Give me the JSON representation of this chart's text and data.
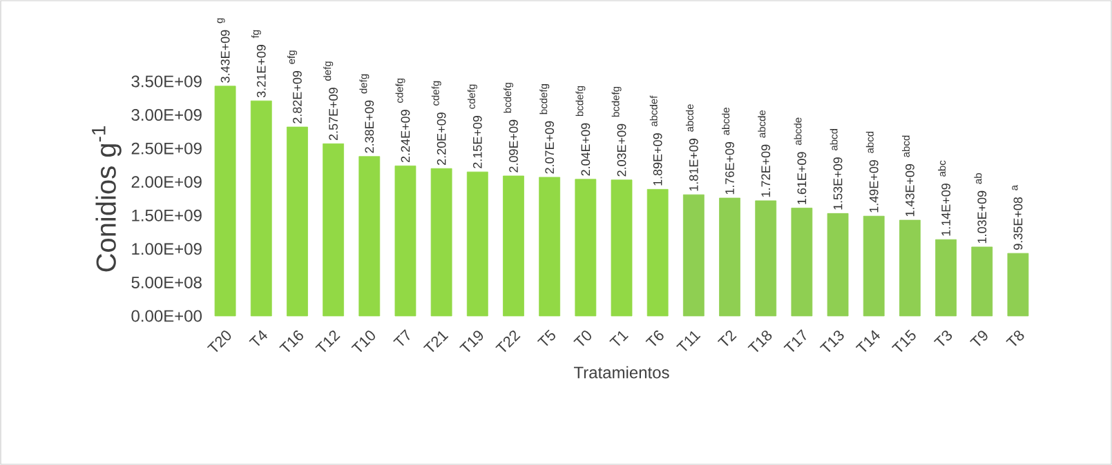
{
  "chart_data": {
    "type": "bar",
    "ylabel": "Conidios g$^{-1}$",
    "xlabel": "Tratamientos",
    "categories": [
      "T20",
      "T4",
      "T16",
      "T12",
      "T10",
      "T7",
      "T21",
      "T19",
      "T22",
      "T5",
      "T0",
      "T1",
      "T6",
      "T11",
      "T2",
      "T18",
      "T17",
      "T13",
      "T14",
      "T15",
      "T3",
      "T9",
      "T8"
    ],
    "values": [
      3430000000,
      3210000000,
      2820000000,
      2570000000,
      2380000000,
      2240000000,
      2200000000,
      2150000000,
      2090000000,
      2070000000,
      2040000000,
      2030000000,
      1890000000,
      1810000000,
      1760000000,
      1720000000,
      1610000000,
      1530000000,
      1490000000,
      1430000000,
      1140000000,
      1030000000,
      935000000
    ],
    "value_labels": [
      "3.43E+09",
      "3.21E+09",
      "2.82E+09",
      "2.57E+09",
      "2.38E+09",
      "2.24E+09",
      "2.20E+09",
      "2.15E+09",
      "2.09E+09",
      "2.07E+09",
      "2.04E+09",
      "2.03E+09",
      "1.89E+09",
      "1.81E+09",
      "1.76E+09",
      "1.72E+09",
      "1.61E+09",
      "1.53E+09",
      "1.49E+09",
      "1.43E+09",
      "1.14E+09",
      "1.03E+09",
      "9.35E+08"
    ],
    "annotations": [
      "g",
      "fg",
      "efg",
      "defg",
      "defg",
      "cdefg",
      "cdefg",
      "cdefg",
      "bcdefg",
      "bcdefg",
      "bcdefg",
      "bcdefg",
      "abcdef",
      "abcde",
      "abcde",
      "abcde",
      "abcde",
      "abcd",
      "abcd",
      "abcd",
      "abc",
      "ab",
      "a"
    ],
    "colors": [
      "#92d945",
      "#92d945",
      "#92d945",
      "#92d945",
      "#92d945",
      "#92d945",
      "#92d945",
      "#92d945",
      "#92d945",
      "#92d945",
      "#92d945",
      "#92d945",
      "#92d945",
      "#8fcf52",
      "#8fcf52",
      "#8fcf52",
      "#8fcf52",
      "#8fcf52",
      "#8fcf52",
      "#8fcf52",
      "#8fcf52",
      "#8fcf52",
      "#8fcf52"
    ],
    "ylim": [
      0,
      3500000000
    ],
    "yticks": [
      {
        "value": 0,
        "label": "0.00E+00"
      },
      {
        "value": 500000000,
        "label": "5.00E+08"
      },
      {
        "value": 1000000000,
        "label": "1.00E+09"
      },
      {
        "value": 1500000000,
        "label": "1.50E+09"
      },
      {
        "value": 2000000000,
        "label": "2.00E+09"
      },
      {
        "value": 2500000000,
        "label": "2.50E+09"
      },
      {
        "value": 3000000000,
        "label": "3.00E+09"
      },
      {
        "value": 3500000000,
        "label": "3.50E+09"
      }
    ],
    "grid": false
  }
}
